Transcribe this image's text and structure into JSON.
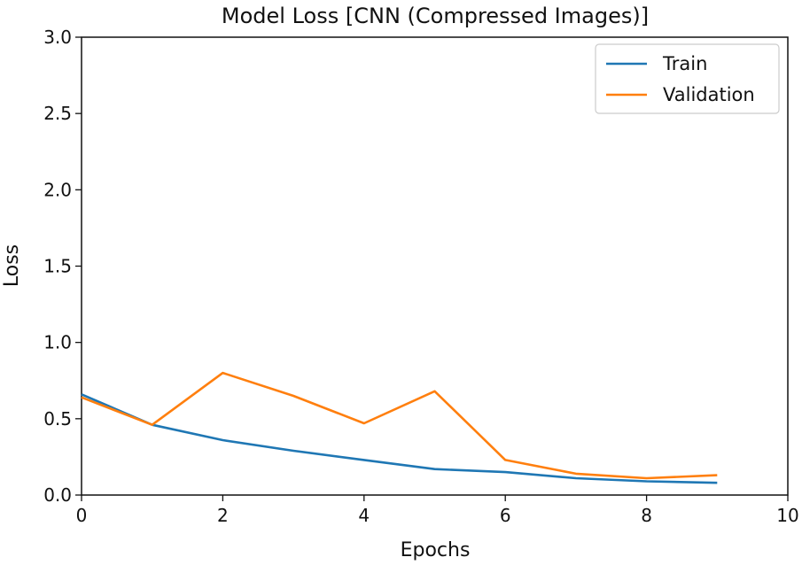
{
  "chart_data": {
    "type": "line",
    "title": "Model Loss [CNN (Compressed Images)]",
    "xlabel": "Epochs",
    "ylabel": "Loss",
    "xlim": [
      0,
      10
    ],
    "ylim": [
      0,
      3.0
    ],
    "xticks": [
      "0",
      "2",
      "4",
      "6",
      "8",
      "10"
    ],
    "yticks": [
      "0.0",
      "0.5",
      "1.0",
      "1.5",
      "2.0",
      "2.5",
      "3.0"
    ],
    "grid": false,
    "legend_position": "top-right",
    "x": [
      0,
      1,
      2,
      3,
      4,
      5,
      6,
      7,
      8,
      9
    ],
    "series": [
      {
        "name": "Train",
        "color": "#1f77b4",
        "values": [
          0.66,
          0.46,
          0.36,
          0.29,
          0.23,
          0.17,
          0.15,
          0.11,
          0.09,
          0.08
        ]
      },
      {
        "name": "Validation",
        "color": "#ff7f0e",
        "values": [
          0.64,
          0.46,
          0.8,
          0.65,
          0.47,
          0.68,
          0.23,
          0.14,
          0.11,
          0.13
        ]
      }
    ]
  }
}
